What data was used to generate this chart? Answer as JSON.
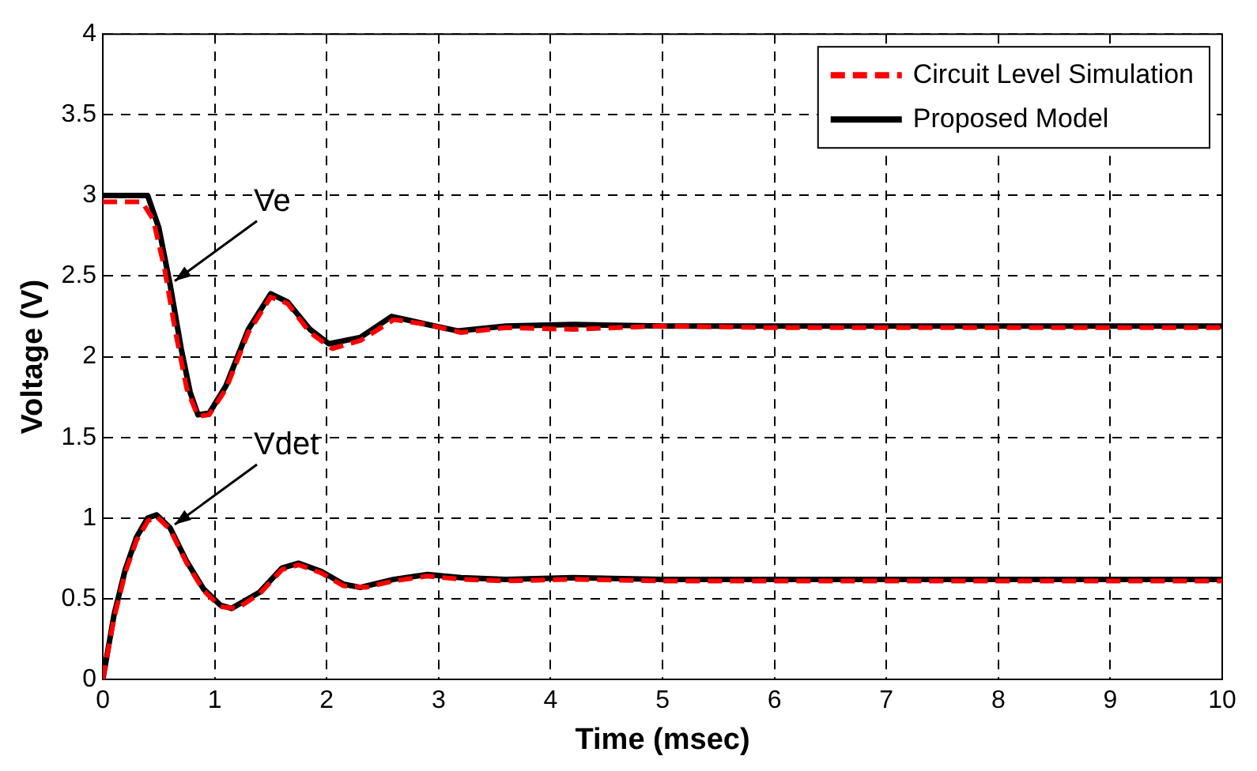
{
  "chart_data": {
    "type": "line",
    "xlabel": "Time (msec)",
    "ylabel": "Voltage (V)",
    "xlim": [
      0,
      10
    ],
    "xticks": [
      0,
      1,
      2,
      3,
      4,
      5,
      6,
      7,
      8,
      9,
      10
    ],
    "ylim": [
      0,
      4
    ],
    "yticks": [
      0,
      0.5,
      1,
      1.5,
      2,
      2.5,
      3,
      3.5,
      4
    ],
    "grid": true,
    "legend": "top right",
    "marker": "none",
    "annotations": [
      {
        "text": "Ve",
        "x": 0.6,
        "y": 2.45
      },
      {
        "text": "Vdet",
        "x": 0.6,
        "y": 0.94
      }
    ],
    "series": [
      {
        "name": "Circuit Level Simulation",
        "color": "#ff0000",
        "line_style": "dashed",
        "x": [
          0,
          0.35,
          0.45,
          0.55,
          0.65,
          0.75,
          0.85,
          0.95,
          1.1,
          1.3,
          1.5,
          1.65,
          1.85,
          2.05,
          2.3,
          2.6,
          2.9,
          3.2,
          3.6,
          4.2,
          5,
          6,
          8,
          10
        ],
        "values": [
          2.96,
          2.96,
          2.85,
          2.55,
          2.15,
          1.8,
          1.63,
          1.64,
          1.8,
          2.15,
          2.37,
          2.33,
          2.15,
          2.05,
          2.1,
          2.23,
          2.2,
          2.15,
          2.18,
          2.17,
          2.19,
          2.18,
          2.18,
          2.18
        ]
      },
      {
        "color": "#ff0000",
        "line_style": "dashed",
        "x": [
          0,
          0.1,
          0.2,
          0.3,
          0.4,
          0.48,
          0.6,
          0.75,
          0.9,
          1.05,
          1.2,
          1.4,
          1.6,
          1.75,
          1.95,
          2.15,
          2.35,
          2.6,
          2.9,
          3.2,
          3.6,
          4.2,
          5,
          6,
          8,
          10
        ],
        "values": [
          0,
          0.38,
          0.66,
          0.86,
          0.98,
          1.01,
          0.93,
          0.72,
          0.55,
          0.45,
          0.44,
          0.53,
          0.68,
          0.71,
          0.66,
          0.58,
          0.57,
          0.61,
          0.64,
          0.62,
          0.61,
          0.62,
          0.61,
          0.61,
          0.61,
          0.61
        ]
      },
      {
        "name": "Proposed Model",
        "color": "#000000",
        "line_style": "solid",
        "x": [
          0,
          0.4,
          0.5,
          0.6,
          0.7,
          0.78,
          0.85,
          0.95,
          1.1,
          1.3,
          1.5,
          1.65,
          1.85,
          2.02,
          2.3,
          2.58,
          2.9,
          3.17,
          3.6,
          4.2,
          5,
          6,
          8,
          10
        ],
        "values": [
          3,
          3,
          2.8,
          2.45,
          2.05,
          1.78,
          1.64,
          1.65,
          1.82,
          2.17,
          2.39,
          2.34,
          2.17,
          2.08,
          2.12,
          2.25,
          2.2,
          2.16,
          2.19,
          2.2,
          2.19,
          2.19,
          2.19,
          2.19
        ]
      },
      {
        "color": "#000000",
        "line_style": "solid",
        "x": [
          0,
          0.1,
          0.2,
          0.3,
          0.4,
          0.48,
          0.6,
          0.75,
          0.9,
          1.05,
          1.15,
          1.4,
          1.6,
          1.75,
          1.95,
          2.15,
          2.3,
          2.6,
          2.9,
          3.2,
          3.6,
          4.2,
          5,
          6,
          8,
          10
        ],
        "values": [
          0,
          0.4,
          0.68,
          0.88,
          1,
          1.02,
          0.94,
          0.73,
          0.56,
          0.46,
          0.44,
          0.54,
          0.69,
          0.72,
          0.67,
          0.59,
          0.57,
          0.62,
          0.65,
          0.63,
          0.62,
          0.63,
          0.62,
          0.62,
          0.62,
          0.62
        ]
      }
    ]
  }
}
